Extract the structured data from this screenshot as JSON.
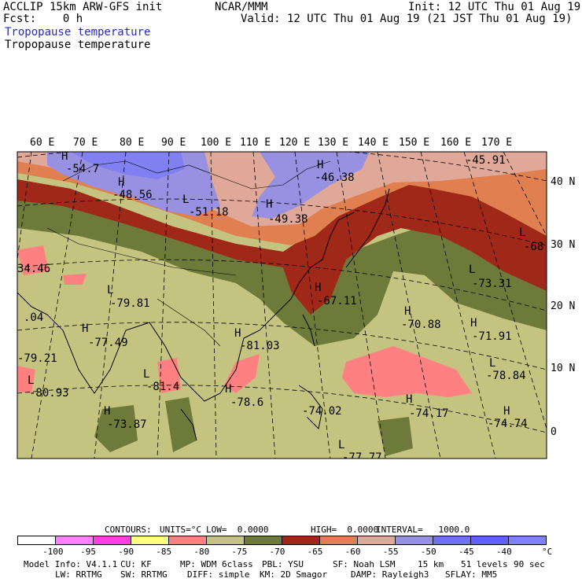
{
  "header": {
    "left_line1": "ACCLIP 15km ARW-GFS init",
    "left_line2": "Fcst:    0 h",
    "center": "NCAR/MMM",
    "init": "Init: 12 UTC Thu 01 Aug 19",
    "valid": "Valid: 12 UTC Thu 01 Aug 19 (21 JST Thu 01 Aug 19)",
    "field_title_1": "Tropopause temperature",
    "field_title_2": "Tropopause temperature"
  },
  "map": {
    "lon_labels": [
      "60 E",
      "70 E",
      "80 E",
      "90 E",
      "100 E",
      "110 E",
      "120 E",
      "130 E",
      "140 E",
      "150 E",
      "160 E",
      "170 E"
    ],
    "lat_labels": [
      "40 N",
      "30 N",
      "20 N",
      "10 N",
      "0"
    ],
    "centers": [
      {
        "mark": "H",
        "value": "-54.7"
      },
      {
        "mark": "H",
        "value": "-48.56"
      },
      {
        "mark": "L",
        "value": "-51.18"
      },
      {
        "mark": "H",
        "value": "-46.38"
      },
      {
        "mark": "H",
        "value": "-49.38"
      },
      {
        "mark": "",
        "value": "-45.91"
      },
      {
        "mark": "L",
        "value": "-68"
      },
      {
        "mark": "L",
        "value": "-73.31"
      },
      {
        "mark": "H",
        "value": "-67.11"
      },
      {
        "mark": "H",
        "value": "-70.88"
      },
      {
        "mark": "H",
        "value": "-71.91"
      },
      {
        "mark": "L",
        "value": "-79.81"
      },
      {
        "mark": "H",
        "value": "-77.49"
      },
      {
        "mark": "H",
        "value": "-81.03"
      },
      {
        "mark": "",
        "value": "34.46"
      },
      {
        "mark": "",
        "value": ".04"
      },
      {
        "mark": "",
        "value": "-79.21"
      },
      {
        "mark": "L",
        "value": "-80.93"
      },
      {
        "mark": "L",
        "value": "-81.4"
      },
      {
        "mark": "H",
        "value": "-78.6"
      },
      {
        "mark": "L",
        "value": "-78.84"
      },
      {
        "mark": "",
        "value": "-74.02"
      },
      {
        "mark": "H",
        "value": "-74.17"
      },
      {
        "mark": "H",
        "value": "-74.74"
      },
      {
        "mark": "H",
        "value": "-73.87"
      },
      {
        "mark": "L",
        "value": "-77.77"
      }
    ]
  },
  "contours_line": {
    "contours": "CONTOURS:",
    "units": "UNITS=°C",
    "low": "LOW=  0.0000",
    "high": "HIGH=  0.0000",
    "interval": "INTERVAL=   1000.0"
  },
  "colorbar": {
    "colors": [
      "#ffffff",
      "#ff80ff",
      "#ff40e0",
      "#ffff80",
      "#ff8080",
      "#c4c480",
      "#6e7a3a",
      "#a02818",
      "#e08050",
      "#e0a898",
      "#9890e0",
      "#7070f0",
      "#6060ff",
      "#8080f8"
    ],
    "tick_labels": [
      "-100",
      "-95",
      "-90",
      "-85",
      "-80",
      "-75",
      "-70",
      "-65",
      "-60",
      "-55",
      "-50",
      "-45",
      "-40"
    ],
    "unit": "°C"
  },
  "footer": {
    "model_info": "Model Info: V4.1.1",
    "cu": "CU: KF",
    "mp": "MP: WDM 6class",
    "pbl": "PBL: YSU",
    "sf": "SF: Noah LSM",
    "res": "15 km",
    "levels": "51 levels",
    "dt": "90 sec",
    "lw": "LW: RRTMG",
    "sw": "SW: RRTMG",
    "diff": "DIFF: simple",
    "km": "KM: 2D Smagor",
    "damp": "DAMP: Rayleigh3",
    "sflay": "SFLAY: MM5"
  }
}
